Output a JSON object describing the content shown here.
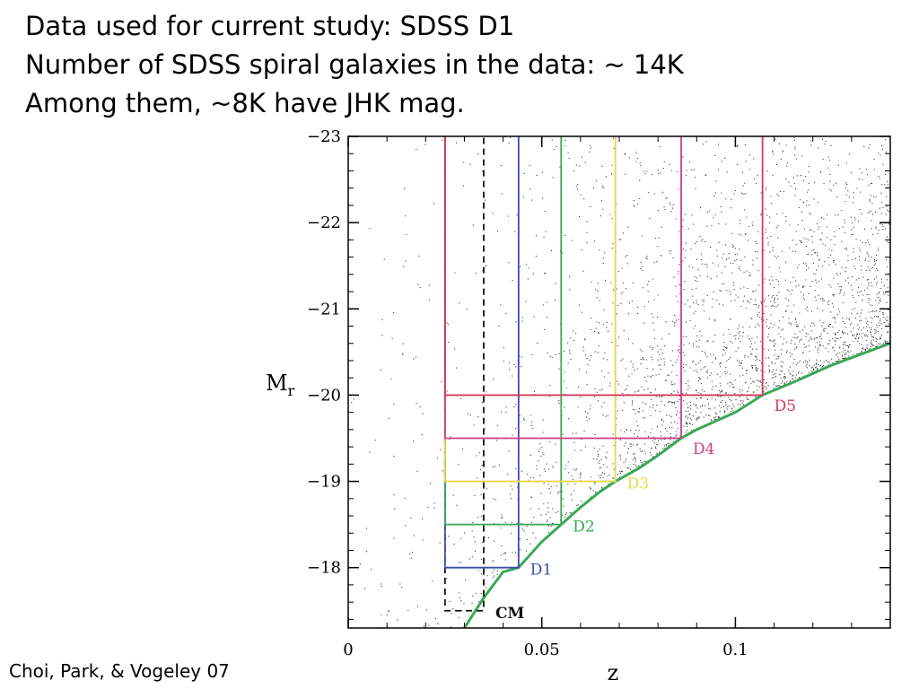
{
  "heading_lines": [
    "Data used for current study: SDSS D1",
    "Number of SDSS spiral galaxies in the data: ~ 14K",
    "Among them, ~8K have JHK mag."
  ],
  "citation": "Choi, Park, & Vogeley 07",
  "chart_data": {
    "type": "scatter",
    "title": "",
    "xlabel": "z",
    "ylabel": "M",
    "ylabel_subscript": "r",
    "xlim": [
      0,
      0.14
    ],
    "ylim": [
      -17.3,
      -23
    ],
    "y_axis_inverted": true,
    "x_ticks": [
      {
        "v": 0,
        "label": "0"
      },
      {
        "v": 0.05,
        "label": "0.05"
      },
      {
        "v": 0.1,
        "label": "0.1"
      }
    ],
    "y_ticks": [
      {
        "v": -18,
        "label": "−18"
      },
      {
        "v": -19,
        "label": "−19"
      },
      {
        "v": -20,
        "label": "−20"
      },
      {
        "v": -21,
        "label": "−21"
      },
      {
        "v": -22,
        "label": "−22"
      },
      {
        "v": -23,
        "label": "−23"
      }
    ],
    "points_description": "dense cloud of SDSS galaxies (black dots) bounded below by the apparent magnitude limit",
    "limit_curve": {
      "color": "#3aa856",
      "points": [
        [
          0.03,
          -17.3
        ],
        [
          0.035,
          -17.65
        ],
        [
          0.04,
          -17.95
        ],
        [
          0.044,
          -18.0
        ],
        [
          0.05,
          -18.3
        ],
        [
          0.055,
          -18.5
        ],
        [
          0.06,
          -18.7
        ],
        [
          0.065,
          -18.88
        ],
        [
          0.069,
          -19.0
        ],
        [
          0.075,
          -19.15
        ],
        [
          0.08,
          -19.3
        ],
        [
          0.086,
          -19.5
        ],
        [
          0.09,
          -19.6
        ],
        [
          0.1,
          -19.8
        ],
        [
          0.107,
          -20.0
        ],
        [
          0.115,
          -20.15
        ],
        [
          0.125,
          -20.35
        ],
        [
          0.14,
          -20.6
        ]
      ]
    },
    "samples": [
      {
        "name": "CM",
        "color": "#111111",
        "dashed": true,
        "z_min": 0.025,
        "z_max": 0.035,
        "m_faint": -17.5,
        "m_bright": -23,
        "label_at": [
          0.038,
          -17.5
        ]
      },
      {
        "name": "D1",
        "color": "#3b4ea5",
        "dashed": false,
        "z_min": 0.025,
        "z_max": 0.044,
        "m_faint": -18.0,
        "m_bright": -23,
        "label_at": [
          0.047,
          -18.0
        ]
      },
      {
        "name": "D2",
        "color": "#3aa856",
        "dashed": false,
        "z_min": 0.025,
        "z_max": 0.055,
        "m_faint": -18.5,
        "m_bright": -23,
        "label_at": [
          0.058,
          -18.5
        ]
      },
      {
        "name": "D3",
        "color": "#e8d84a",
        "dashed": false,
        "z_min": 0.025,
        "z_max": 0.069,
        "m_faint": -19.0,
        "m_bright": -23,
        "label_at": [
          0.072,
          -19.0
        ]
      },
      {
        "name": "D4",
        "color": "#cc3f86",
        "dashed": false,
        "z_min": 0.025,
        "z_max": 0.086,
        "m_faint": -19.5,
        "m_bright": -23,
        "label_at": [
          0.089,
          -19.4
        ]
      },
      {
        "name": "D5",
        "color": "#d23a5e",
        "dashed": false,
        "z_min": 0.025,
        "z_max": 0.107,
        "m_faint": -20.0,
        "m_bright": -23,
        "label_at": [
          0.11,
          -19.9
        ]
      }
    ],
    "grid": false,
    "legend": "none"
  }
}
